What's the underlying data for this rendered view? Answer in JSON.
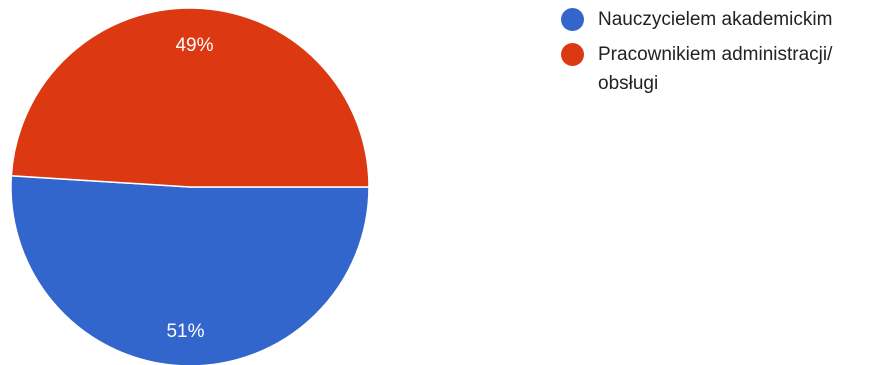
{
  "chart_data": {
    "type": "pie",
    "title": "",
    "slices": [
      {
        "label": "Nauczycielem akademickim",
        "value": 51,
        "display": "51%",
        "color": "#3366cc"
      },
      {
        "label": "Pracownikiem administracji/ obsługi",
        "value": 49,
        "display": "49%",
        "color": "#dc3912"
      }
    ],
    "legend_position": "top-right"
  },
  "legend": {
    "items": [
      {
        "label": "Nauczycielem akademickim",
        "color": "#3366cc"
      },
      {
        "label": "Pracownikiem administracji/ obsługi",
        "color": "#dc3912"
      }
    ]
  }
}
